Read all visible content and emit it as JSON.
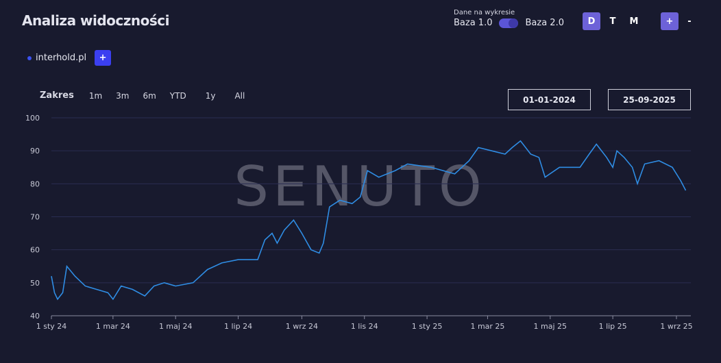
{
  "header": {
    "title": "Analiza widoczności"
  },
  "base_toggle": {
    "label": "Dane na wykresie",
    "left": "Baza 1.0",
    "right": "Baza 2.0",
    "selected": "Baza 2.0"
  },
  "granularity": {
    "options": [
      "D",
      "T",
      "M"
    ],
    "selected": "D"
  },
  "zoom": {
    "plus": "+",
    "minus": "-"
  },
  "domain": {
    "name": "interhold.pl",
    "color": "#3b52f0",
    "add": "+"
  },
  "range": {
    "label": "Zakres",
    "options": [
      "1m",
      "3m",
      "6m",
      "YTD",
      "1y",
      "All"
    ]
  },
  "dates": {
    "from": "01-01-2024",
    "to": "25-09-2025"
  },
  "watermark": "SENUTO",
  "chart_data": {
    "type": "line",
    "ylim": [
      40,
      100
    ],
    "yticks": [
      40,
      50,
      60,
      70,
      80,
      90,
      100
    ],
    "xticks": [
      {
        "date": "2024-01-01",
        "label": "1 sty 24"
      },
      {
        "date": "2024-03-01",
        "label": "1 mar 24"
      },
      {
        "date": "2024-05-01",
        "label": "1 maj 24"
      },
      {
        "date": "2024-07-01",
        "label": "1 lip 24"
      },
      {
        "date": "2024-09-01",
        "label": "1 wrz 24"
      },
      {
        "date": "2024-11-01",
        "label": "1 lis 24"
      },
      {
        "date": "2025-01-01",
        "label": "1 sty 25"
      },
      {
        "date": "2025-03-01",
        "label": "1 mar 25"
      },
      {
        "date": "2025-05-01",
        "label": "1 maj 25"
      },
      {
        "date": "2025-07-01",
        "label": "1 lip 25"
      },
      {
        "date": "2025-09-01",
        "label": "1 wrz 25"
      }
    ],
    "grid": true,
    "series": [
      {
        "color": "#2f8de4",
        "points": [
          [
            "2024-01-01",
            52
          ],
          [
            "2024-01-04",
            47
          ],
          [
            "2024-01-07",
            45
          ],
          [
            "2024-01-12",
            47
          ],
          [
            "2024-01-16",
            55
          ],
          [
            "2024-01-24",
            52
          ],
          [
            "2024-02-03",
            49
          ],
          [
            "2024-02-14",
            48
          ],
          [
            "2024-02-25",
            47
          ],
          [
            "2024-03-01",
            45
          ],
          [
            "2024-03-09",
            49
          ],
          [
            "2024-03-20",
            48
          ],
          [
            "2024-04-01",
            46
          ],
          [
            "2024-04-10",
            49
          ],
          [
            "2024-04-20",
            50
          ],
          [
            "2024-05-01",
            49
          ],
          [
            "2024-05-18",
            50
          ],
          [
            "2024-06-01",
            54
          ],
          [
            "2024-06-15",
            56
          ],
          [
            "2024-07-01",
            57
          ],
          [
            "2024-07-20",
            57
          ],
          [
            "2024-07-27",
            63
          ],
          [
            "2024-08-03",
            65
          ],
          [
            "2024-08-08",
            62
          ],
          [
            "2024-08-15",
            66
          ],
          [
            "2024-08-24",
            69
          ],
          [
            "2024-09-01",
            65
          ],
          [
            "2024-09-10",
            60
          ],
          [
            "2024-09-18",
            59
          ],
          [
            "2024-09-22",
            62
          ],
          [
            "2024-09-28",
            73
          ],
          [
            "2024-10-08",
            75
          ],
          [
            "2024-10-20",
            74
          ],
          [
            "2024-10-28",
            76
          ],
          [
            "2024-11-04",
            84
          ],
          [
            "2024-11-15",
            82
          ],
          [
            "2024-12-01",
            84
          ],
          [
            "2024-12-13",
            86
          ],
          [
            "2025-01-05",
            85
          ],
          [
            "2025-01-28",
            83
          ],
          [
            "2025-02-11",
            87
          ],
          [
            "2025-02-20",
            91
          ],
          [
            "2025-03-05",
            90
          ],
          [
            "2025-03-18",
            89
          ],
          [
            "2025-03-25",
            91
          ],
          [
            "2025-04-02",
            93
          ],
          [
            "2025-04-12",
            89
          ],
          [
            "2025-04-20",
            88
          ],
          [
            "2025-04-26",
            82
          ],
          [
            "2025-05-10",
            85
          ],
          [
            "2025-05-30",
            85
          ],
          [
            "2025-06-08",
            89
          ],
          [
            "2025-06-15",
            92
          ],
          [
            "2025-06-25",
            88
          ],
          [
            "2025-07-01",
            85
          ],
          [
            "2025-07-05",
            90
          ],
          [
            "2025-07-12",
            88
          ],
          [
            "2025-07-20",
            85
          ],
          [
            "2025-07-25",
            80
          ],
          [
            "2025-08-01",
            86
          ],
          [
            "2025-08-15",
            87
          ],
          [
            "2025-08-28",
            85
          ],
          [
            "2025-09-05",
            81
          ],
          [
            "2025-09-10",
            78
          ]
        ]
      }
    ]
  }
}
